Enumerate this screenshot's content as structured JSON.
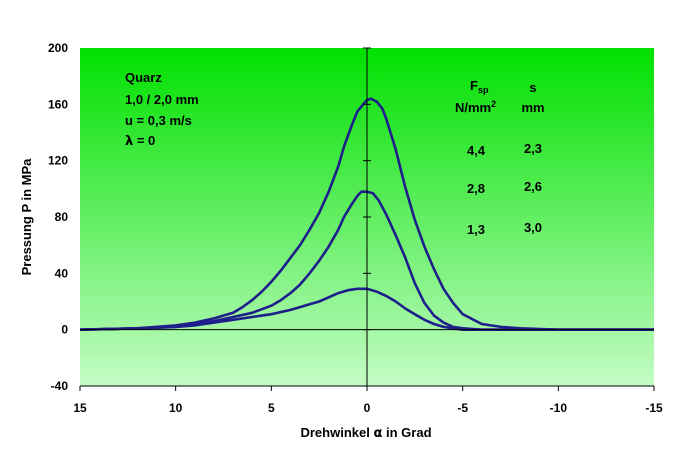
{
  "chart_data": {
    "type": "line",
    "xlabel_prefix": "Drehwinkel ",
    "xlabel_symbol": "α",
    "xlabel_suffix": " in Grad",
    "ylabel": "Pressung P in MPa",
    "xlim": [
      15,
      -15
    ],
    "ylim": [
      -40,
      200
    ],
    "x_ticks": [
      15,
      10,
      5,
      0,
      -5,
      -10,
      -15
    ],
    "x_tick_labels": [
      "15",
      "10",
      "5",
      "0",
      "-5",
      "-10",
      "-15"
    ],
    "y_ticks": [
      -40,
      0,
      40,
      80,
      120,
      160,
      200
    ],
    "y_tick_labels": [
      "-40",
      "0",
      "40",
      "80",
      "120",
      "160",
      "200"
    ],
    "grid": false,
    "background": "vertical green gradient",
    "colors": {
      "line": "#1f1f8c",
      "bg_top": "#00e000",
      "bg_bottom": "#c4fcc4",
      "axis": "#000000"
    },
    "annotation": {
      "material": "Quarz",
      "dimensions": "1,0 / 2,0 mm",
      "velocity": "u = 0,3 m/s",
      "lambda_symbol": "λ",
      "lambda_rest": " = 0"
    },
    "table": {
      "col1_header_main": "F",
      "col1_header_sub": "sp",
      "col1_unit_main": "N/mm",
      "col1_unit_sup": "2",
      "col2_header": "s",
      "col2_unit": "mm",
      "rows": [
        {
          "fsp": "4,4",
          "s": "2,3"
        },
        {
          "fsp": "2,8",
          "s": "2,6"
        },
        {
          "fsp": "1,3",
          "s": "3,0"
        }
      ]
    },
    "series": [
      {
        "x": [
          15,
          12,
          10,
          9,
          8,
          7,
          6.5,
          6,
          5.5,
          5,
          4.5,
          4,
          3.5,
          3,
          2.5,
          2,
          1.5,
          1.2,
          0.8,
          0.5,
          0.2,
          0,
          -0.2,
          -0.5,
          -0.8,
          -1,
          -1.5,
          -2,
          -2.5,
          -3,
          -3.5,
          -4,
          -4.5,
          -5,
          -6,
          -7,
          -8,
          -10,
          -12,
          -15
        ],
        "y": [
          0,
          1,
          3,
          5,
          8,
          12,
          16,
          21,
          27,
          34,
          42,
          51,
          60,
          71,
          83,
          98,
          116,
          130,
          145,
          155,
          160,
          163,
          164,
          162,
          157,
          150,
          128,
          101,
          78,
          59,
          43,
          29,
          19,
          11,
          4,
          2,
          1,
          0,
          0,
          0
        ]
      },
      {
        "x": [
          15,
          12,
          10,
          9,
          8,
          7,
          6,
          5,
          4.5,
          4,
          3.5,
          3,
          2.5,
          2,
          1.5,
          1.2,
          0.8,
          0.5,
          0.3,
          0,
          -0.3,
          -0.6,
          -1,
          -1.5,
          -2,
          -2.5,
          -3,
          -3.5,
          -4,
          -4.5,
          -5,
          -6,
          -8,
          -10,
          -15
        ],
        "y": [
          0,
          1,
          2,
          4,
          6,
          9,
          12,
          17,
          21,
          26,
          32,
          40,
          49,
          59,
          71,
          80,
          89,
          95,
          98,
          98,
          97,
          92,
          82,
          67,
          51,
          33,
          19,
          10,
          5,
          2,
          1,
          0,
          0,
          0,
          0
        ]
      },
      {
        "x": [
          15,
          12,
          10,
          9,
          8,
          7,
          6,
          5,
          4,
          3.5,
          3,
          2.5,
          2,
          1.5,
          1,
          0.5,
          0,
          -0.5,
          -1,
          -1.5,
          -2,
          -2.5,
          -3,
          -3.5,
          -4,
          -4.5,
          -5,
          -6,
          -8,
          -10,
          -15
        ],
        "y": [
          0,
          1,
          2,
          3,
          5,
          7,
          9,
          11,
          14,
          16,
          18,
          20,
          23,
          26,
          28,
          29,
          29,
          27,
          24,
          20,
          15,
          11,
          7,
          4,
          2,
          1,
          0,
          0,
          0,
          0,
          0
        ]
      }
    ]
  }
}
